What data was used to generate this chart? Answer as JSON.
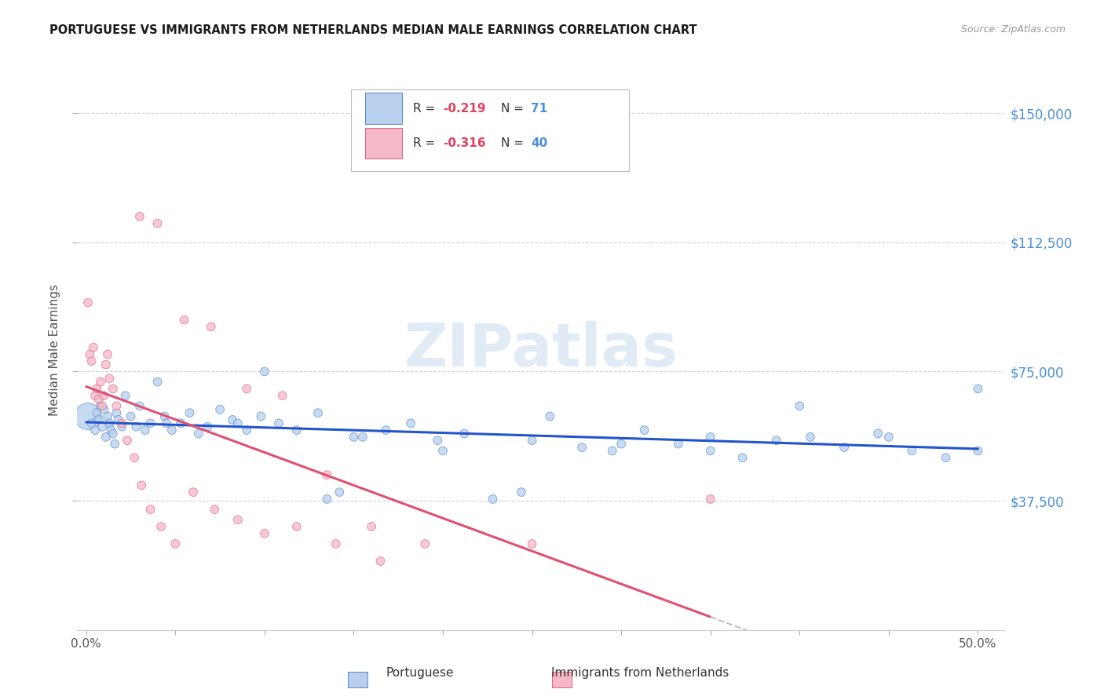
{
  "title": "PORTUGUESE VS IMMIGRANTS FROM NETHERLANDS MEDIAN MALE EARNINGS CORRELATION CHART",
  "source": "Source: ZipAtlas.com",
  "ylabel": "Median Male Earnings",
  "xlim": [
    -0.005,
    0.515
  ],
  "ylim": [
    0,
    162500
  ],
  "yticks": [
    37500,
    75000,
    112500,
    150000
  ],
  "ytick_labels": [
    "$37,500",
    "$75,000",
    "$112,500",
    "$150,000"
  ],
  "background_color": "#ffffff",
  "grid_color": "#d0d0d0",
  "series1_color": "#b8d0ee",
  "series2_color": "#f5b8c8",
  "series1_edge": "#5588cc",
  "series2_edge": "#e06080",
  "line1_color": "#2255cc",
  "line2_color": "#e05070",
  "line_dashed_color": "#c0c0c0",
  "series1_x": [
    0.001,
    0.003,
    0.005,
    0.006,
    0.007,
    0.008,
    0.009,
    0.01,
    0.011,
    0.012,
    0.013,
    0.014,
    0.015,
    0.016,
    0.017,
    0.018,
    0.02,
    0.022,
    0.025,
    0.028,
    0.03,
    0.033,
    0.036,
    0.04,
    0.044,
    0.048,
    0.053,
    0.058,
    0.063,
    0.068,
    0.075,
    0.082,
    0.09,
    0.098,
    0.108,
    0.118,
    0.13,
    0.142,
    0.155,
    0.168,
    0.182,
    0.197,
    0.212,
    0.228,
    0.244,
    0.26,
    0.278,
    0.295,
    0.313,
    0.332,
    0.35,
    0.368,
    0.387,
    0.406,
    0.425,
    0.444,
    0.463,
    0.482,
    0.5,
    0.1,
    0.15,
    0.2,
    0.25,
    0.3,
    0.35,
    0.4,
    0.45,
    0.5,
    0.045,
    0.085,
    0.135
  ],
  "series1_y": [
    62000,
    60000,
    58000,
    63000,
    61000,
    65000,
    59000,
    64000,
    56000,
    62000,
    60000,
    58000,
    57000,
    54000,
    63000,
    61000,
    59000,
    68000,
    62000,
    59000,
    65000,
    58000,
    60000,
    72000,
    62000,
    58000,
    60000,
    63000,
    57000,
    59000,
    64000,
    61000,
    58000,
    62000,
    60000,
    58000,
    63000,
    40000,
    56000,
    58000,
    60000,
    55000,
    57000,
    38000,
    40000,
    62000,
    53000,
    52000,
    58000,
    54000,
    56000,
    50000,
    55000,
    56000,
    53000,
    57000,
    52000,
    50000,
    52000,
    75000,
    56000,
    52000,
    55000,
    54000,
    52000,
    65000,
    56000,
    70000,
    60000,
    60000,
    38000
  ],
  "series1_size": [
    600,
    60,
    60,
    60,
    60,
    60,
    60,
    60,
    60,
    60,
    60,
    60,
    60,
    60,
    60,
    60,
    60,
    60,
    60,
    60,
    60,
    60,
    60,
    60,
    60,
    60,
    60,
    60,
    60,
    60,
    60,
    60,
    60,
    60,
    60,
    60,
    60,
    60,
    60,
    60,
    60,
    60,
    60,
    60,
    60,
    60,
    60,
    60,
    60,
    60,
    60,
    60,
    60,
    60,
    60,
    60,
    60,
    60,
    60,
    60,
    60,
    60,
    60,
    60,
    60,
    60,
    60,
    60,
    60,
    60,
    60
  ],
  "series2_x": [
    0.001,
    0.002,
    0.003,
    0.004,
    0.005,
    0.006,
    0.007,
    0.008,
    0.009,
    0.01,
    0.011,
    0.012,
    0.013,
    0.015,
    0.017,
    0.02,
    0.023,
    0.027,
    0.031,
    0.036,
    0.042,
    0.05,
    0.06,
    0.072,
    0.085,
    0.1,
    0.118,
    0.14,
    0.165,
    0.03,
    0.04,
    0.055,
    0.07,
    0.09,
    0.11,
    0.135,
    0.16,
    0.19,
    0.25,
    0.35
  ],
  "series2_y": [
    95000,
    80000,
    78000,
    82000,
    68000,
    70000,
    67000,
    72000,
    65000,
    68000,
    77000,
    80000,
    73000,
    70000,
    65000,
    60000,
    55000,
    50000,
    42000,
    35000,
    30000,
    25000,
    40000,
    35000,
    32000,
    28000,
    30000,
    25000,
    20000,
    120000,
    118000,
    90000,
    88000,
    70000,
    68000,
    45000,
    30000,
    25000,
    25000,
    38000
  ],
  "series2_size": [
    60,
    60,
    60,
    60,
    60,
    60,
    60,
    60,
    60,
    60,
    60,
    60,
    60,
    60,
    60,
    60,
    60,
    60,
    60,
    60,
    60,
    60,
    60,
    60,
    60,
    60,
    60,
    60,
    60,
    60,
    60,
    60,
    60,
    60,
    60,
    60,
    60,
    60,
    60,
    60
  ]
}
